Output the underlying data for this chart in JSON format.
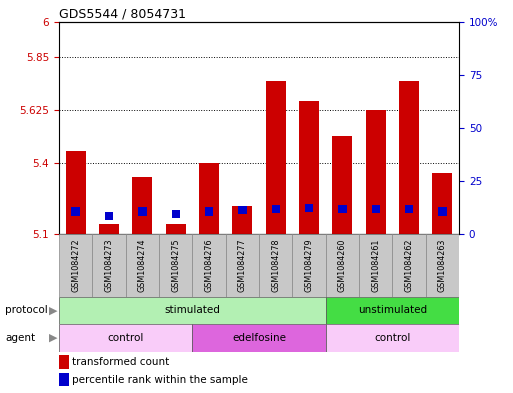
{
  "title": "GDS5544 / 8054731",
  "samples": [
    "GSM1084272",
    "GSM1084273",
    "GSM1084274",
    "GSM1084275",
    "GSM1084276",
    "GSM1084277",
    "GSM1084278",
    "GSM1084279",
    "GSM1084260",
    "GSM1084261",
    "GSM1084262",
    "GSM1084263"
  ],
  "red_values": [
    5.45,
    5.14,
    5.34,
    5.14,
    5.4,
    5.22,
    5.75,
    5.665,
    5.515,
    5.625,
    5.75,
    5.36
  ],
  "blue_values": [
    5.195,
    5.175,
    5.195,
    5.185,
    5.195,
    5.2,
    5.205,
    5.21,
    5.205,
    5.205,
    5.205,
    5.195
  ],
  "ymin": 5.1,
  "ymax": 6.0,
  "yticks_left": [
    5.1,
    5.4,
    5.625,
    5.85,
    6.0
  ],
  "ytick_labels_left": [
    "5.1",
    "5.4",
    "5.625",
    "5.85",
    "6"
  ],
  "right_tick_pcts": [
    0,
    25,
    50,
    75,
    100
  ],
  "right_tick_labels": [
    "0",
    "25",
    "50",
    "75",
    "100%"
  ],
  "bar_color": "#cc0000",
  "blue_color": "#0000cc",
  "bar_width": 0.6,
  "blue_bar_width": 0.25,
  "blue_bar_height": 0.035,
  "grid_lines": [
    5.4,
    5.625,
    5.85
  ],
  "protocol_groups": [
    {
      "label": "stimulated",
      "start": 0,
      "end": 7,
      "color": "#b3f0b3"
    },
    {
      "label": "unstimulated",
      "start": 8,
      "end": 11,
      "color": "#44dd44"
    }
  ],
  "agent_groups": [
    {
      "label": "control",
      "start": 0,
      "end": 3,
      "color": "#f9ccf9"
    },
    {
      "label": "edelfosine",
      "start": 4,
      "end": 7,
      "color": "#dd66dd"
    },
    {
      "label": "control",
      "start": 8,
      "end": 11,
      "color": "#f9ccf9"
    }
  ],
  "legend_red": "transformed count",
  "legend_blue": "percentile rank within the sample",
  "protocol_label": "protocol",
  "agent_label": "agent",
  "xlabel_bg": "#c8c8c8",
  "xlabel_border": "#888888"
}
